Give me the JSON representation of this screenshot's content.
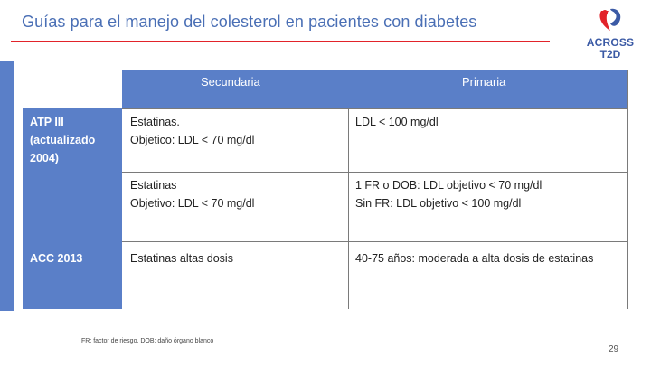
{
  "slide": {
    "title": "Guías para el manejo del colesterol en pacientes con diabetes",
    "logo": {
      "line1": "ACROSS",
      "line2": "T2D"
    },
    "table": {
      "headers": {
        "secondary": "Secundaria",
        "primary": "Primaria"
      },
      "rows": [
        {
          "label": "ATP III (actualizado 2004)",
          "secondary_line1": "Estatinas.",
          "secondary_line2": "Objetico: LDL < 70 mg/dl",
          "primary_line1": "LDL < 100 mg/dl",
          "primary_line2": ""
        },
        {
          "label": "",
          "secondary_line1": "Estatinas",
          "secondary_line2": "Objetivo: LDL < 70 mg/dl",
          "primary_line1": "1 FR o DOB: LDL objetivo < 70 mg/dl",
          "primary_line2": "Sin FR: LDL objetivo < 100 mg/dl"
        },
        {
          "label": "ACC 2013",
          "secondary_line1": "Estatinas altas dosis",
          "secondary_line2": "",
          "primary_line1": "40-75 años: moderada a alta dosis de estatinas",
          "primary_line2": ""
        }
      ]
    },
    "footnote": "FR: factor de riesgo. DOB: daño órgano blanco",
    "page_number": "29"
  }
}
